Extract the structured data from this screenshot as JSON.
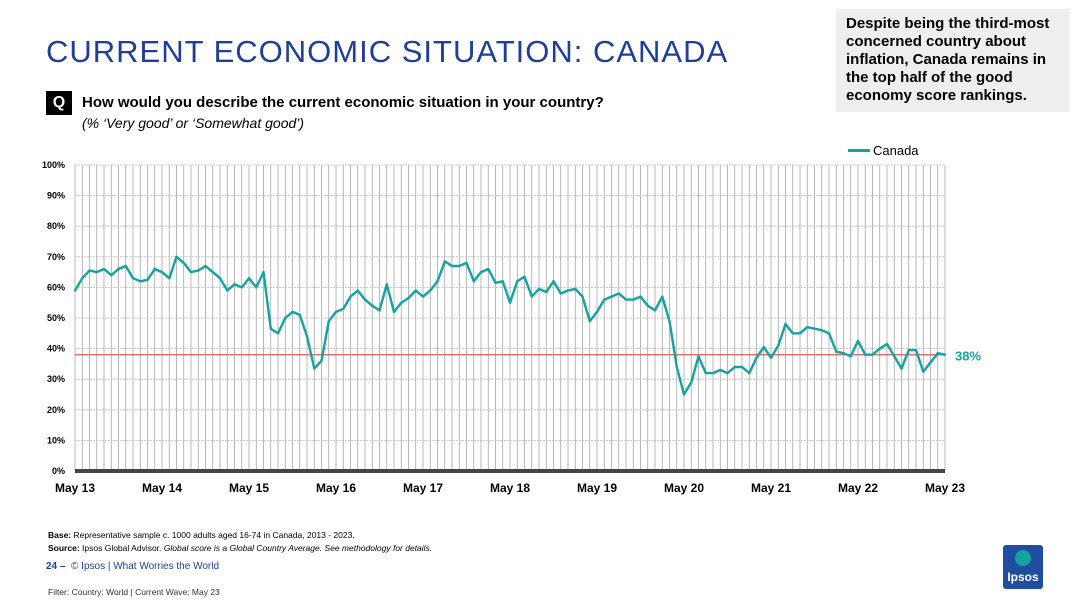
{
  "title": "CURRENT ECONOMIC SITUATION: CANADA",
  "callout": "Despite being the third-most concerned country about inflation, Canada remains in the top half of the good economy score rankings.",
  "question": {
    "badge": "Q",
    "text": "How would you describe the current economic situation in your country?",
    "subtext": "(% ‘Very good’ or ‘Somewhat good’)"
  },
  "chart_data": {
    "type": "line",
    "series": [
      {
        "name": "Canada",
        "color": "#13a3a0",
        "values": [
          59,
          63,
          65.5,
          65,
          66,
          64,
          66,
          67,
          63,
          62,
          62.5,
          66,
          65,
          63,
          70,
          68,
          65,
          65.5,
          67,
          65,
          63,
          59,
          61,
          60,
          63,
          60,
          65,
          46.5,
          45,
          50,
          52,
          51,
          44,
          33.5,
          36,
          49,
          52,
          53,
          57,
          59,
          56,
          54,
          52.5,
          61,
          52,
          55,
          56.5,
          59,
          57,
          59,
          62,
          68.5,
          67,
          67,
          68,
          62,
          65,
          66,
          61.5,
          62,
          55,
          62,
          63.5,
          57,
          59.5,
          58.5,
          62,
          58,
          59,
          59.5,
          57,
          49,
          52,
          56,
          57,
          58,
          56,
          56,
          57,
          54,
          52.5,
          57,
          49,
          34,
          25,
          29,
          37.5,
          32,
          32,
          33,
          32,
          34,
          34,
          32,
          37,
          40.5,
          37,
          41,
          48,
          45,
          45,
          47,
          46.5,
          46,
          45,
          39,
          38.5,
          37.5,
          42.5,
          38,
          38,
          40,
          41.5,
          37.5,
          33.5,
          39.5,
          39.5,
          32.5,
          35.5,
          38.5,
          38
        ]
      }
    ],
    "x_tick_labels": [
      "May 13",
      "May 14",
      "May 15",
      "May 16",
      "May 17",
      "May 18",
      "May 19",
      "May 20",
      "May 21",
      "May 22",
      "May 23"
    ],
    "y_tick_labels": [
      "0%",
      "10%",
      "20%",
      "30%",
      "40%",
      "50%",
      "60%",
      "70%",
      "80%",
      "90%",
      "100%"
    ],
    "ylim": [
      0,
      100
    ],
    "reference_line": {
      "value": 38,
      "label": "38%",
      "color": "#e05a5a"
    },
    "legend": "top-right",
    "grid": true
  },
  "footer": {
    "base_label": "Base:",
    "base_text": "Representative sample c. 1000 adults aged 16-74 in Canada, 2013 - 2023.",
    "source_label": "Source:",
    "source_text": "Ipsos Global Advisor.",
    "source_note": "Global score is a Global Country Average. See methodology for details.",
    "page_number": "24",
    "page_sep": "–",
    "brand_text": "© Ipsos | What Worries the World",
    "filter_text": "Filter: Country: World | Current Wave: May 23",
    "logo_text": "Ipsos"
  }
}
